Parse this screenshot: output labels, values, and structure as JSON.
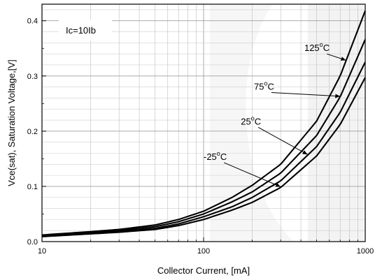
{
  "chart_data": {
    "type": "line",
    "xscale": "log",
    "xlim": [
      10,
      1000
    ],
    "ylim": [
      0.0,
      0.43
    ],
    "xlabel": "Collector Current, [mA]",
    "ylabel": "Vce(sat), Saturation Voltage,[V]",
    "x_ticks": [
      10,
      100,
      1000
    ],
    "x_tick_labels": [
      "10",
      "100",
      "1000"
    ],
    "y_ticks": [
      0.0,
      0.1,
      0.2,
      0.3,
      0.4
    ],
    "y_tick_labels": [
      "0.0",
      "0.1",
      "0.2",
      "0.3",
      "0.4"
    ],
    "grid": true,
    "condition_label": "Ic=10Ib",
    "series": [
      {
        "name": "125°C",
        "x": [
          10,
          20,
          30,
          50,
          70,
          100,
          150,
          200,
          300,
          500,
          700,
          1000
        ],
        "y": [
          0.012,
          0.018,
          0.022,
          0.03,
          0.04,
          0.055,
          0.08,
          0.102,
          0.14,
          0.218,
          0.3,
          0.418
        ]
      },
      {
        "name": "75°C",
        "x": [
          10,
          20,
          30,
          50,
          70,
          100,
          150,
          200,
          300,
          500,
          700,
          1000
        ],
        "y": [
          0.011,
          0.016,
          0.02,
          0.027,
          0.036,
          0.05,
          0.072,
          0.09,
          0.124,
          0.192,
          0.262,
          0.366
        ]
      },
      {
        "name": "25°C",
        "x": [
          10,
          20,
          30,
          50,
          70,
          100,
          150,
          200,
          300,
          500,
          700,
          1000
        ],
        "y": [
          0.01,
          0.015,
          0.018,
          0.024,
          0.032,
          0.045,
          0.063,
          0.08,
          0.11,
          0.172,
          0.234,
          0.325
        ]
      },
      {
        "name": "-25°C",
        "x": [
          10,
          20,
          30,
          50,
          70,
          100,
          150,
          200,
          300,
          500,
          700,
          1000
        ],
        "y": [
          0.009,
          0.014,
          0.017,
          0.022,
          0.029,
          0.04,
          0.057,
          0.071,
          0.098,
          0.155,
          0.212,
          0.297
        ]
      }
    ],
    "annotations": [
      {
        "series": "125°C",
        "label": "125",
        "sup": "o",
        "unit": "C",
        "text_x": 420,
        "text_y": 0.345,
        "arrow_x": 760
      },
      {
        "series": "75°C",
        "label": "75",
        "sup": "o",
        "unit": "C",
        "text_x": 205,
        "text_y": 0.275,
        "arrow_x": 700
      },
      {
        "series": "25°C",
        "label": "25",
        "sup": "o",
        "unit": "C",
        "text_x": 170,
        "text_y": 0.212,
        "arrow_x": 440
      },
      {
        "series": "-25°C",
        "label": "-25",
        "sup": "o",
        "unit": "C",
        "text_x": 100,
        "text_y": 0.148,
        "arrow_x": 300
      }
    ]
  }
}
